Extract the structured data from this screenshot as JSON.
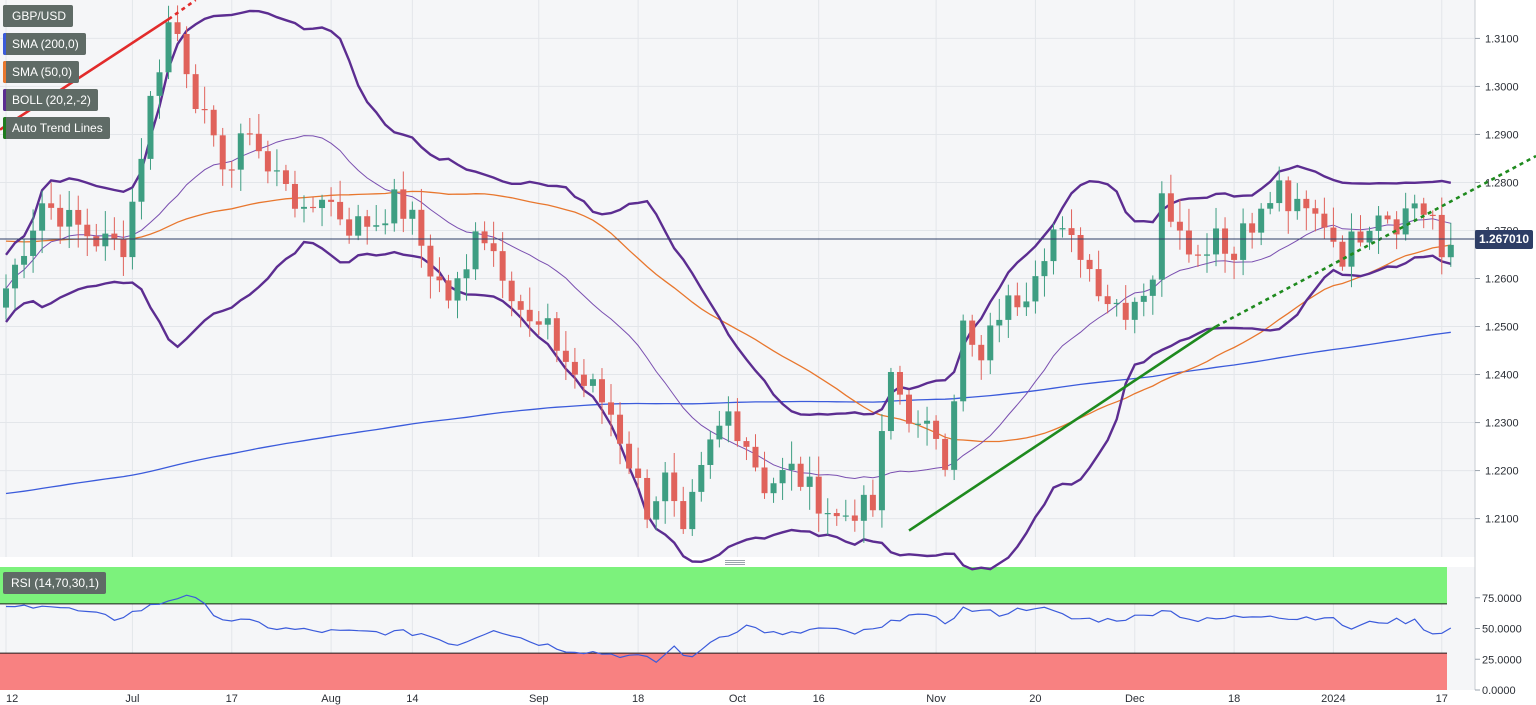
{
  "legend": {
    "items": [
      {
        "label": "GBP/USD",
        "color": "#5f6b66"
      },
      {
        "label": "SMA (200,0)",
        "color": "#3b5bdb"
      },
      {
        "label": "SMA (50,0)",
        "color": "#e8772e"
      },
      {
        "label": "BOLL (20,2,-2)",
        "color": "#5c2d91"
      },
      {
        "label": "Auto Trend Lines",
        "color": "#1e7b1e"
      }
    ]
  },
  "price_tag": "1.267010",
  "rsi": {
    "label": "RSI (14,70,30,1)"
  },
  "chart_data": [
    {
      "type": "candlestick",
      "title": "",
      "x_tick_labels": [
        "12",
        "Jul",
        "17",
        "Aug",
        "14",
        "Sep",
        "18",
        "Oct",
        "16",
        "Nov",
        "20",
        "Dec",
        "18",
        "2024",
        "17"
      ],
      "y_tick_labels": [
        "1.3100",
        "1.3000",
        "1.2900",
        "1.2800",
        "1.2700",
        "1.2600",
        "1.2500",
        "1.2400",
        "1.2300",
        "1.2200",
        "1.2100"
      ],
      "ylim": [
        1.202,
        1.318
      ],
      "current_price": 1.267,
      "close_path": [
        [
          0,
          1.258
        ],
        [
          4,
          1.276
        ],
        [
          7,
          1.272
        ],
        [
          10,
          1.268
        ],
        [
          13,
          1.267
        ],
        [
          14,
          1.276
        ],
        [
          16,
          1.297
        ],
        [
          18,
          1.313
        ],
        [
          19,
          1.311
        ],
        [
          21,
          1.298
        ],
        [
          23,
          1.287
        ],
        [
          25,
          1.283
        ],
        [
          27,
          1.292
        ],
        [
          29,
          1.282
        ],
        [
          31,
          1.281
        ],
        [
          33,
          1.272
        ],
        [
          35,
          1.278
        ],
        [
          38,
          1.271
        ],
        [
          41,
          1.272
        ],
        [
          43,
          1.276
        ],
        [
          45,
          1.272
        ],
        [
          47,
          1.262
        ],
        [
          49,
          1.256
        ],
        [
          51,
          1.261
        ],
        [
          52,
          1.272
        ],
        [
          54,
          1.266
        ],
        [
          56,
          1.258
        ],
        [
          58,
          1.25
        ],
        [
          60,
          1.249
        ],
        [
          62,
          1.243
        ],
        [
          63,
          1.24
        ],
        [
          64,
          1.238
        ],
        [
          65,
          1.237
        ],
        [
          67,
          1.232
        ],
        [
          69,
          1.222
        ],
        [
          71,
          1.212
        ],
        [
          73,
          1.218
        ],
        [
          75,
          1.205
        ],
        [
          76,
          1.213
        ],
        [
          78,
          1.225
        ],
        [
          80,
          1.232
        ],
        [
          82,
          1.226
        ],
        [
          84,
          1.217
        ],
        [
          87,
          1.22
        ],
        [
          89,
          1.216
        ],
        [
          92,
          1.21
        ],
        [
          94,
          1.212
        ],
        [
          96,
          1.212
        ],
        [
          98,
          1.24
        ],
        [
          99,
          1.236
        ],
        [
          101,
          1.228
        ],
        [
          103,
          1.228
        ],
        [
          104,
          1.223
        ],
        [
          106,
          1.25
        ],
        [
          107,
          1.245
        ],
        [
          108,
          1.242
        ],
        [
          109,
          1.248
        ],
        [
          110,
          1.253
        ],
        [
          112,
          1.256
        ],
        [
          113,
          1.258
        ],
        [
          114,
          1.263
        ],
        [
          116,
          1.27
        ],
        [
          118,
          1.267
        ],
        [
          119,
          1.266
        ],
        [
          120,
          1.262
        ],
        [
          122,
          1.256
        ],
        [
          124,
          1.254
        ],
        [
          126,
          1.258
        ],
        [
          127,
          1.261
        ],
        [
          128,
          1.276
        ],
        [
          130,
          1.272
        ],
        [
          132,
          1.264
        ],
        [
          134,
          1.271
        ],
        [
          136,
          1.264
        ],
        [
          137,
          1.272
        ],
        [
          139,
          1.273
        ],
        [
          141,
          1.279
        ],
        [
          142,
          1.275
        ],
        [
          143,
          1.274
        ],
        [
          146,
          1.272
        ],
        [
          148,
          1.265
        ],
        [
          150,
          1.27
        ],
        [
          152,
          1.275
        ],
        [
          154,
          1.272
        ],
        [
          156,
          1.276
        ],
        [
          157,
          1.274
        ],
        [
          158,
          1.273
        ],
        [
          159,
          1.262
        ],
        [
          160,
          1.267
        ]
      ]
    },
    {
      "type": "line",
      "title": "",
      "y_tick_labels": [
        "75.0000",
        "50.0000",
        "25.0000",
        "0.0000"
      ],
      "ylim": [
        0,
        100
      ],
      "overbought": 70,
      "oversold": 30,
      "rsi_path": [
        [
          0,
          66
        ],
        [
          4,
          70
        ],
        [
          8,
          64
        ],
        [
          12,
          58
        ],
        [
          16,
          68
        ],
        [
          20,
          78
        ],
        [
          24,
          58
        ],
        [
          28,
          54
        ],
        [
          30,
          50
        ],
        [
          34,
          48
        ],
        [
          38,
          47
        ],
        [
          42,
          47
        ],
        [
          46,
          46
        ],
        [
          50,
          37
        ],
        [
          54,
          50
        ],
        [
          58,
          40
        ],
        [
          62,
          33
        ],
        [
          66,
          30
        ],
        [
          70,
          27
        ],
        [
          72,
          23
        ],
        [
          74,
          35
        ],
        [
          76,
          25
        ],
        [
          78,
          40
        ],
        [
          82,
          52
        ],
        [
          86,
          44
        ],
        [
          90,
          50
        ],
        [
          94,
          46
        ],
        [
          97,
          50
        ],
        [
          100,
          63
        ],
        [
          104,
          55
        ],
        [
          106,
          66
        ],
        [
          110,
          62
        ],
        [
          114,
          68
        ],
        [
          118,
          58
        ],
        [
          122,
          57
        ],
        [
          126,
          60
        ],
        [
          128,
          66
        ],
        [
          132,
          56
        ],
        [
          136,
          59
        ],
        [
          140,
          62
        ],
        [
          142,
          58
        ],
        [
          146,
          60
        ],
        [
          149,
          50
        ],
        [
          152,
          56
        ],
        [
          156,
          56
        ],
        [
          158,
          46
        ],
        [
          160,
          50
        ]
      ]
    }
  ]
}
